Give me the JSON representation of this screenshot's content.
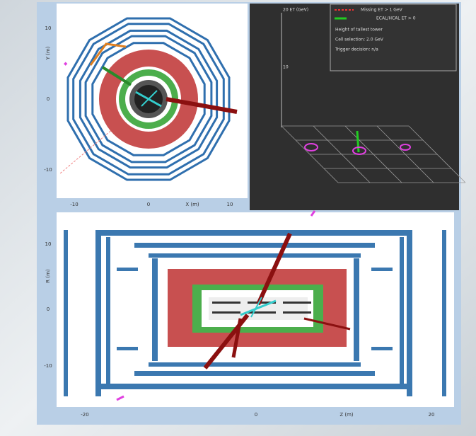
{
  "xy_view": {
    "y_ticks": [
      "10",
      "0",
      "-10"
    ],
    "y_label": "Y (m)",
    "x_ticks": [
      "-10",
      "0",
      "10"
    ],
    "x_label": "X (m)"
  },
  "lego_view": {
    "axis_label": "20 ET (GeV)",
    "tick": "10",
    "legend": [
      "Missing ET > 1 GeV",
      "ECAL/HCAL ET > 0",
      "Height of tallest tower",
      "Cell selection: 2.0 GeV",
      "Trigger decision: n/a"
    ]
  },
  "rz_view": {
    "y_ticks": [
      "10",
      "0",
      "-10"
    ],
    "y_label": "R (m)",
    "x_ticks": [
      "-20",
      "0",
      "20"
    ],
    "x_label": "Z (m)"
  }
}
